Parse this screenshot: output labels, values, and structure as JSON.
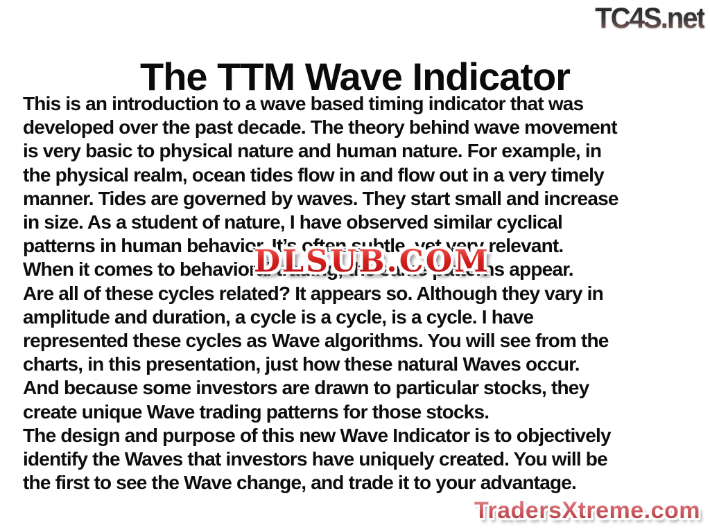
{
  "branding": {
    "tc4s": {
      "text": "TC4S.net",
      "color_top": "#262626",
      "color_bottom": "#8d5f5b"
    },
    "dlsub": {
      "text": "DLSUB.COM",
      "color": "#d6201f",
      "outline_color": "#ffffff"
    },
    "tradersxtreme": {
      "text": "TradersXtreme.com",
      "color": "#c9565c",
      "outline_color": "#ffffff"
    }
  },
  "slide": {
    "title": "The TTM Wave Indicator",
    "body_lines": [
      "This is an introduction to a wave based timing indicator that was",
      "developed over the past decade. The theory behind wave movement",
      "is very basic to physical nature and human nature. For example, in",
      "the physical realm, ocean tides flow in and flow out in a very timely",
      "manner. Tides are governed by waves. They start small and increase",
      "in size. As a student of nature, I have observed similar cyclical",
      "patterns in human behavior. It’s often subtle, yet very relevant.",
      "When it comes to behavioral trading, the same patterns appear.",
      "Are all of these cycles related? It appears so. Although they vary in",
      "amplitude and duration, a cycle is a cycle, is a cycle. I have",
      "represented these cycles as Wave algorithms. You will see from the",
      "charts, in this presentation, just how these natural Waves occur.",
      "And because some investors are drawn to particular stocks, they",
      "create unique Wave trading patterns for those stocks.",
      "The design and purpose of this new Wave Indicator is to objectively",
      "identify the Waves that investors have uniquely created. You will be",
      "the first to see the Wave change, and trade it to your advantage."
    ]
  },
  "colors": {
    "background": "#ffffff",
    "body_text": "#0d0d0d"
  }
}
